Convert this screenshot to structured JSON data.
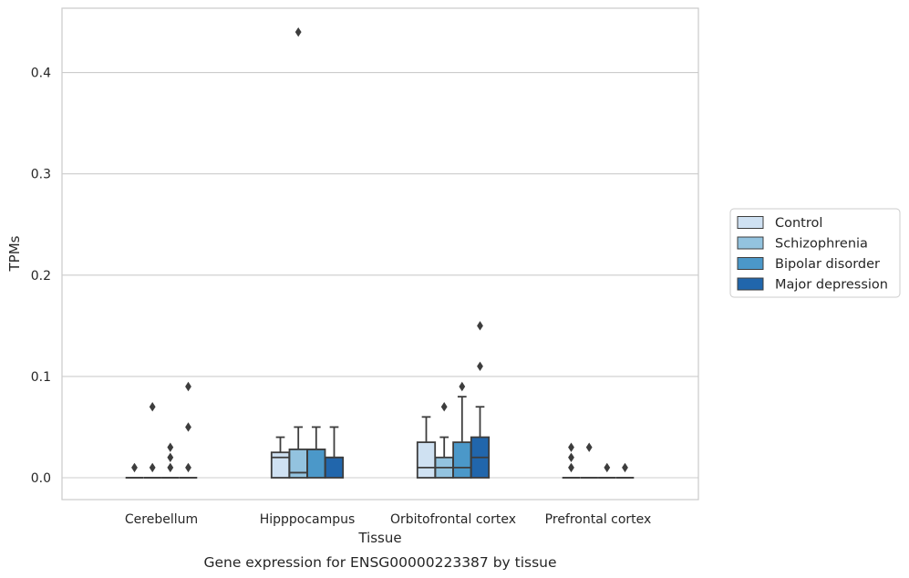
{
  "caption": "Gene expression for ENSG00000223387 by tissue",
  "chart_data": {
    "type": "box",
    "xlabel": "Tissue",
    "ylabel": "TPMs",
    "ylim": [
      -0.021,
      0.465
    ],
    "yticks": [
      "0.0",
      "0.1",
      "0.2",
      "0.3",
      "0.4"
    ],
    "ytick_values": [
      0.0,
      0.1,
      0.2,
      0.3,
      0.4
    ],
    "grid": "horizontal",
    "legend_position": "right",
    "categories": [
      "Cerebellum",
      "Hipppocampus",
      "Orbitofrontal cortex",
      "Prefrontal cortex"
    ],
    "series": [
      {
        "name": "Control",
        "color": "#cfe1f2",
        "boxes": [
          {
            "q1": 0.0,
            "median": 0.0,
            "q3": 0.0,
            "whisker_low": 0.0,
            "whisker_high": 0.0,
            "outliers": [
              0.01
            ]
          },
          {
            "q1": 0.0,
            "median": 0.02,
            "q3": 0.025,
            "whisker_low": 0.0,
            "whisker_high": 0.04,
            "outliers": []
          },
          {
            "q1": 0.0,
            "median": 0.01,
            "q3": 0.035,
            "whisker_low": 0.0,
            "whisker_high": 0.06,
            "outliers": []
          },
          {
            "q1": 0.0,
            "median": 0.0,
            "q3": 0.0,
            "whisker_low": 0.0,
            "whisker_high": 0.0,
            "outliers": [
              0.01,
              0.02,
              0.03
            ]
          }
        ]
      },
      {
        "name": "Schizophrenia",
        "color": "#93c3df",
        "boxes": [
          {
            "q1": 0.0,
            "median": 0.0,
            "q3": 0.0,
            "whisker_low": 0.0,
            "whisker_high": 0.0,
            "outliers": [
              0.01,
              0.07
            ]
          },
          {
            "q1": 0.0,
            "median": 0.005,
            "q3": 0.028,
            "whisker_low": 0.0,
            "whisker_high": 0.05,
            "outliers": [
              0.44
            ]
          },
          {
            "q1": 0.0,
            "median": 0.01,
            "q3": 0.02,
            "whisker_low": 0.0,
            "whisker_high": 0.04,
            "outliers": [
              0.07
            ]
          },
          {
            "q1": 0.0,
            "median": 0.0,
            "q3": 0.0,
            "whisker_low": 0.0,
            "whisker_high": 0.0,
            "outliers": [
              0.03
            ]
          }
        ]
      },
      {
        "name": "Bipolar disorder",
        "color": "#4b98c9",
        "boxes": [
          {
            "q1": 0.0,
            "median": 0.0,
            "q3": 0.0,
            "whisker_low": 0.0,
            "whisker_high": 0.0,
            "outliers": [
              0.01,
              0.02,
              0.03
            ]
          },
          {
            "q1": 0.0,
            "median": 0.028,
            "q3": 0.028,
            "whisker_low": 0.0,
            "whisker_high": 0.05,
            "outliers": []
          },
          {
            "q1": 0.0,
            "median": 0.01,
            "q3": 0.035,
            "whisker_low": 0.0,
            "whisker_high": 0.08,
            "outliers": [
              0.09
            ]
          },
          {
            "q1": 0.0,
            "median": 0.0,
            "q3": 0.0,
            "whisker_low": 0.0,
            "whisker_high": 0.0,
            "outliers": [
              0.01
            ]
          }
        ]
      },
      {
        "name": "Major depression",
        "color": "#2166ac",
        "boxes": [
          {
            "q1": 0.0,
            "median": 0.0,
            "q3": 0.0,
            "whisker_low": 0.0,
            "whisker_high": 0.0,
            "outliers": [
              0.01,
              0.05,
              0.09
            ]
          },
          {
            "q1": 0.0,
            "median": 0.02,
            "q3": 0.02,
            "whisker_low": 0.0,
            "whisker_high": 0.05,
            "outliers": []
          },
          {
            "q1": 0.0,
            "median": 0.02,
            "q3": 0.04,
            "whisker_low": 0.0,
            "whisker_high": 0.07,
            "outliers": [
              0.11,
              0.15
            ]
          },
          {
            "q1": 0.0,
            "median": 0.0,
            "q3": 0.0,
            "whisker_low": 0.0,
            "whisker_high": 0.0,
            "outliers": [
              0.01
            ]
          }
        ]
      }
    ]
  }
}
